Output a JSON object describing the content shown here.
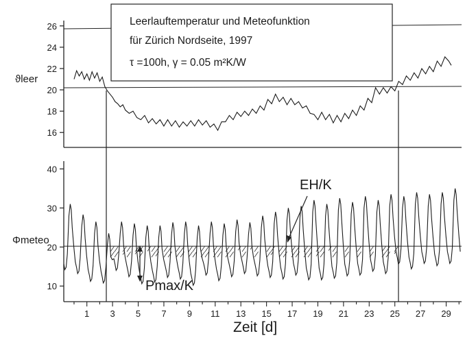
{
  "chart_data": [
    {
      "type": "line",
      "title": "Leerlauftemperatur und Meteofunktion",
      "subtitle": "für Zürich Nordseite, 1997",
      "params": "τ =100h, γ = 0.05 m²K/W",
      "ylabel": "ϑleer",
      "ylim": [
        14.6,
        26.5
      ],
      "yticks": [
        16,
        18,
        20,
        22,
        24,
        26
      ],
      "hline": 20.2,
      "series": [
        {
          "points": [
            [
              0.0,
              21.0
            ],
            [
              0.2,
              21.8
            ],
            [
              0.4,
              21.3
            ],
            [
              0.6,
              21.7
            ],
            [
              0.8,
              21.0
            ],
            [
              1.0,
              21.5
            ],
            [
              1.2,
              20.9
            ],
            [
              1.4,
              21.7
            ],
            [
              1.6,
              21.1
            ],
            [
              1.8,
              21.6
            ],
            [
              2.0,
              20.8
            ],
            [
              2.2,
              21.2
            ],
            [
              2.4,
              20.3
            ],
            [
              2.6,
              19.9
            ],
            [
              2.8,
              19.6
            ],
            [
              3.0,
              19.3
            ],
            [
              3.2,
              18.9
            ],
            [
              3.4,
              18.7
            ],
            [
              3.6,
              18.4
            ],
            [
              3.8,
              18.6
            ],
            [
              4.0,
              18.1
            ],
            [
              4.3,
              17.8
            ],
            [
              4.6,
              18.0
            ],
            [
              4.9,
              17.4
            ],
            [
              5.2,
              17.2
            ],
            [
              5.5,
              17.6
            ],
            [
              5.8,
              16.9
            ],
            [
              6.1,
              17.3
            ],
            [
              6.4,
              16.8
            ],
            [
              6.7,
              17.2
            ],
            [
              7.0,
              16.6
            ],
            [
              7.3,
              17.2
            ],
            [
              7.6,
              16.6
            ],
            [
              7.9,
              17.1
            ],
            [
              8.2,
              16.5
            ],
            [
              8.5,
              17.0
            ],
            [
              8.8,
              16.6
            ],
            [
              9.1,
              17.1
            ],
            [
              9.4,
              16.6
            ],
            [
              9.7,
              17.2
            ],
            [
              10.0,
              16.7
            ],
            [
              10.3,
              17.1
            ],
            [
              10.6,
              16.5
            ],
            [
              10.9,
              16.8
            ],
            [
              11.2,
              16.2
            ],
            [
              11.5,
              17.0
            ],
            [
              11.8,
              17.0
            ],
            [
              12.1,
              17.6
            ],
            [
              12.4,
              17.2
            ],
            [
              12.7,
              17.9
            ],
            [
              13.0,
              17.5
            ],
            [
              13.3,
              18.0
            ],
            [
              13.6,
              17.6
            ],
            [
              13.9,
              18.2
            ],
            [
              14.2,
              17.8
            ],
            [
              14.5,
              18.5
            ],
            [
              14.8,
              18.1
            ],
            [
              15.1,
              19.1
            ],
            [
              15.4,
              18.7
            ],
            [
              15.7,
              19.6
            ],
            [
              16.0,
              18.9
            ],
            [
              16.3,
              19.3
            ],
            [
              16.6,
              18.6
            ],
            [
              16.9,
              19.2
            ],
            [
              17.2,
              18.6
            ],
            [
              17.5,
              18.9
            ],
            [
              17.8,
              18.3
            ],
            [
              18.1,
              18.5
            ],
            [
              18.4,
              17.8
            ],
            [
              18.7,
              17.7
            ],
            [
              19.0,
              17.2
            ],
            [
              19.3,
              17.9
            ],
            [
              19.6,
              17.2
            ],
            [
              19.9,
              17.7
            ],
            [
              20.2,
              16.9
            ],
            [
              20.5,
              17.6
            ],
            [
              20.8,
              17.0
            ],
            [
              21.1,
              17.8
            ],
            [
              21.4,
              17.3
            ],
            [
              21.7,
              18.1
            ],
            [
              22.0,
              17.6
            ],
            [
              22.3,
              18.5
            ],
            [
              22.6,
              18.1
            ],
            [
              22.9,
              19.2
            ],
            [
              23.2,
              18.8
            ],
            [
              23.5,
              20.2
            ],
            [
              23.8,
              19.6
            ],
            [
              24.1,
              20.2
            ],
            [
              24.4,
              19.7
            ],
            [
              24.7,
              20.3
            ],
            [
              25.0,
              19.9
            ],
            [
              25.3,
              20.8
            ],
            [
              25.6,
              20.5
            ],
            [
              25.9,
              21.3
            ],
            [
              26.2,
              20.9
            ],
            [
              26.5,
              21.6
            ],
            [
              26.8,
              21.1
            ],
            [
              27.1,
              22.0
            ],
            [
              27.4,
              21.5
            ],
            [
              27.7,
              22.2
            ],
            [
              28.0,
              21.7
            ],
            [
              28.3,
              22.7
            ],
            [
              28.6,
              22.2
            ],
            [
              28.9,
              23.1
            ],
            [
              29.2,
              22.7
            ],
            [
              29.4,
              22.3
            ]
          ]
        }
      ]
    },
    {
      "type": "line",
      "ylabel": "Φmeteo",
      "xlabel": "Zeit [d]",
      "xlim": [
        -0.8,
        30.2
      ],
      "xticks": [
        1,
        3,
        5,
        7,
        9,
        11,
        13,
        15,
        17,
        19,
        21,
        23,
        25,
        27,
        29
      ],
      "ylim": [
        6.0,
        42.0
      ],
      "yticks": [
        10,
        20,
        30,
        40
      ],
      "hline": 20.2,
      "annotations": {
        "energy": "EH/K",
        "power_main": "Pmax/K"
      },
      "series": [
        {
          "amplitude_lo": [
            14.2,
            13.2,
            11.2,
            10.8,
            14.0,
            12.4,
            10.6,
            11.0,
            12.2,
            11.8,
            10.2,
            12.8,
            11.4,
            12.4,
            13.2,
            12.6,
            12.2,
            11.8,
            12.8,
            11.6,
            11.6,
            12.0,
            12.6,
            12.8,
            13.8,
            13.2,
            15.6,
            14.4,
            15.8,
            15.2,
            15.8
          ],
          "amplitude_hi": [
            31.0,
            28.3,
            26.5,
            23.5,
            26.5,
            26.0,
            25.5,
            25.5,
            26.3,
            26.5,
            25.5,
            26.5,
            26.0,
            27.0,
            26.3,
            28.0,
            29.0,
            30.0,
            30.5,
            32.0,
            31.0,
            32.5,
            31.5,
            33.0,
            32.0,
            33.5,
            33.0,
            34.0,
            33.5,
            34.0,
            35.0
          ],
          "day_start": -0.8,
          "day_length": 1.0,
          "description_values": "daily cycle: minimum near each night, peak in the afternoon"
        }
      ]
    }
  ]
}
